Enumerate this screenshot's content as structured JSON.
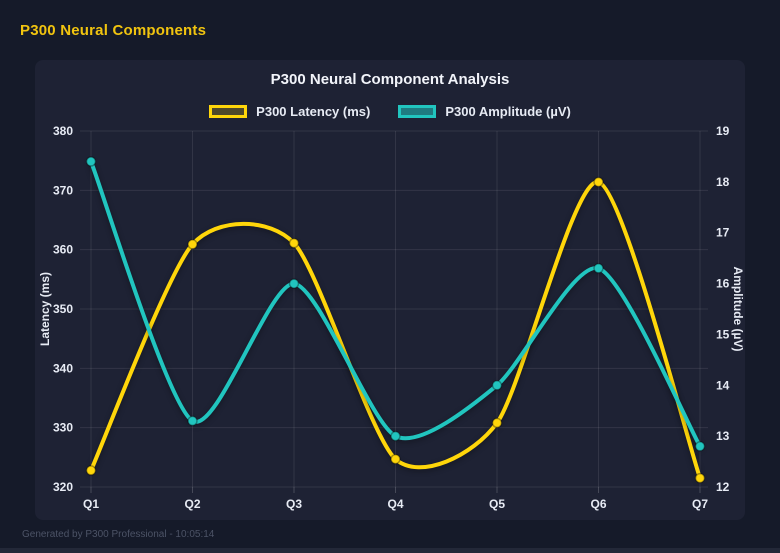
{
  "page": {
    "header_title": "P300 Neural Components",
    "footer_text": "Generated by P300 Professional - 10:05:14"
  },
  "colors": {
    "page_bg": "#151a29",
    "panel_bg": "#1e2234",
    "header_accent": "#f1c40f",
    "title_text": "#f2f4fa",
    "axis_text": "#e7ebf4",
    "grid": "rgba(255,255,255,0.09)",
    "tick_mark": "rgba(255,255,255,0.18)",
    "footer_text": "#4c5366",
    "latency_gold": "#ffd60a",
    "amplitude_teal": "#21c5bf"
  },
  "chart_data": {
    "type": "line",
    "title": "P300 Neural Component Analysis",
    "line_style": "smooth",
    "grid": true,
    "legend_position": "top",
    "categories": [
      "Q1",
      "Q2",
      "Q3",
      "Q4",
      "Q5",
      "Q6",
      "Q7"
    ],
    "series": [
      {
        "key": "latency",
        "name": "P300 Latency (ms)",
        "axis": "left",
        "color": "#ffd60a",
        "fill": "rgba(255,214,10,0.22)",
        "values": [
          322.8,
          360.9,
          361.1,
          324.7,
          330.8,
          371.4,
          321.5
        ]
      },
      {
        "key": "amplitude",
        "name": "P300 Amplitude (µV)",
        "axis": "right",
        "color": "#21c5bf",
        "fill": "rgba(33,197,191,0.55)",
        "values": [
          18.4,
          13.3,
          16.0,
          13.0,
          14.0,
          16.3,
          12.8
        ]
      }
    ],
    "left_axis": {
      "label": "Latency (ms)",
      "min": 320,
      "max": 380,
      "ticks": [
        380,
        370,
        360,
        350,
        340,
        330,
        320
      ]
    },
    "right_axis": {
      "label": "Amplitude (µV)",
      "min": 12,
      "max": 19,
      "ticks": [
        19,
        18,
        17,
        16,
        15,
        14,
        13,
        12
      ]
    }
  }
}
